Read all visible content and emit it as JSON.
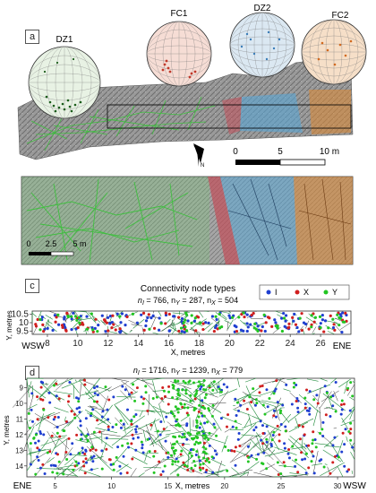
{
  "panels": {
    "a": {
      "label": "a",
      "stereonets": [
        {
          "name": "DZ1",
          "fill": "#e8f2e4",
          "dot": "#1a5c1a"
        },
        {
          "name": "FC1",
          "fill": "#f6ddd5",
          "dot": "#c0392b"
        },
        {
          "name": "DZ2",
          "fill": "#dbe8f2",
          "dot": "#3a7cb8"
        },
        {
          "name": "FC2",
          "fill": "#f6dfc8",
          "dot": "#d2691e"
        }
      ],
      "north_label": "N",
      "scale": {
        "ticks": [
          "0",
          "5",
          "10 m"
        ]
      }
    },
    "b": {
      "label": "b",
      "scale": {
        "ticks": [
          "0",
          "2.5",
          "5 m"
        ]
      }
    },
    "c": {
      "label": "c"
    },
    "d": {
      "label": "d"
    }
  },
  "colors": {
    "I": "#1f3fd0",
    "X": "#d01f1f",
    "Y": "#22c522",
    "edge": "#1f8a3a",
    "green_trace": "#3fbf3f",
    "blue_zone": "#5aa7d6",
    "orange_zone": "#d98a3a",
    "red_zone": "#c24f5a"
  },
  "chart_data": [
    {
      "type": "scatter",
      "title": "Connectivity node types",
      "subtitle": {
        "pre_I": "n",
        "sub_I": "I",
        "val_I": " = 766, n",
        "sub_Y": "Y",
        "val_Y": " = 287, n",
        "sub_X": "X",
        "val_X": " = 504"
      },
      "xlabel": "X, metres",
      "ylabel": "Y, metres",
      "xlim": [
        7,
        28
      ],
      "ylim": [
        9.3,
        10.7
      ],
      "xticks": [
        8,
        10,
        12,
        14,
        16,
        18,
        20,
        22,
        24,
        26
      ],
      "yticks": [
        10.5,
        10.0,
        9.5
      ],
      "ytick_labels": [
        "10.5",
        "10",
        "9.5"
      ],
      "left_label": "WSW",
      "right_label": "ENE",
      "legend": {
        "position": "top-right",
        "entries": [
          "I",
          "X",
          "Y"
        ]
      },
      "counts": {
        "I": 766,
        "Y": 287,
        "X": 504
      }
    },
    {
      "type": "scatter",
      "subtitle": {
        "pre_I": "n",
        "sub_I": "I",
        "val_I": " = 1716, n",
        "sub_Y": "Y",
        "val_Y": " = 1239, n",
        "sub_X": "X",
        "val_X": " = 779"
      },
      "xlabel": "X, metres",
      "ylabel": "Y, metres",
      "xlim": [
        2.5,
        31.5
      ],
      "ylim": [
        8.4,
        14.7
      ],
      "xticks": [
        5,
        10,
        15,
        20,
        25,
        30
      ],
      "yticks": [
        9,
        10,
        11,
        12,
        13,
        14
      ],
      "left_label": "ENE",
      "right_label": "WSW",
      "counts": {
        "I": 1716,
        "Y": 1239,
        "X": 779
      }
    }
  ]
}
